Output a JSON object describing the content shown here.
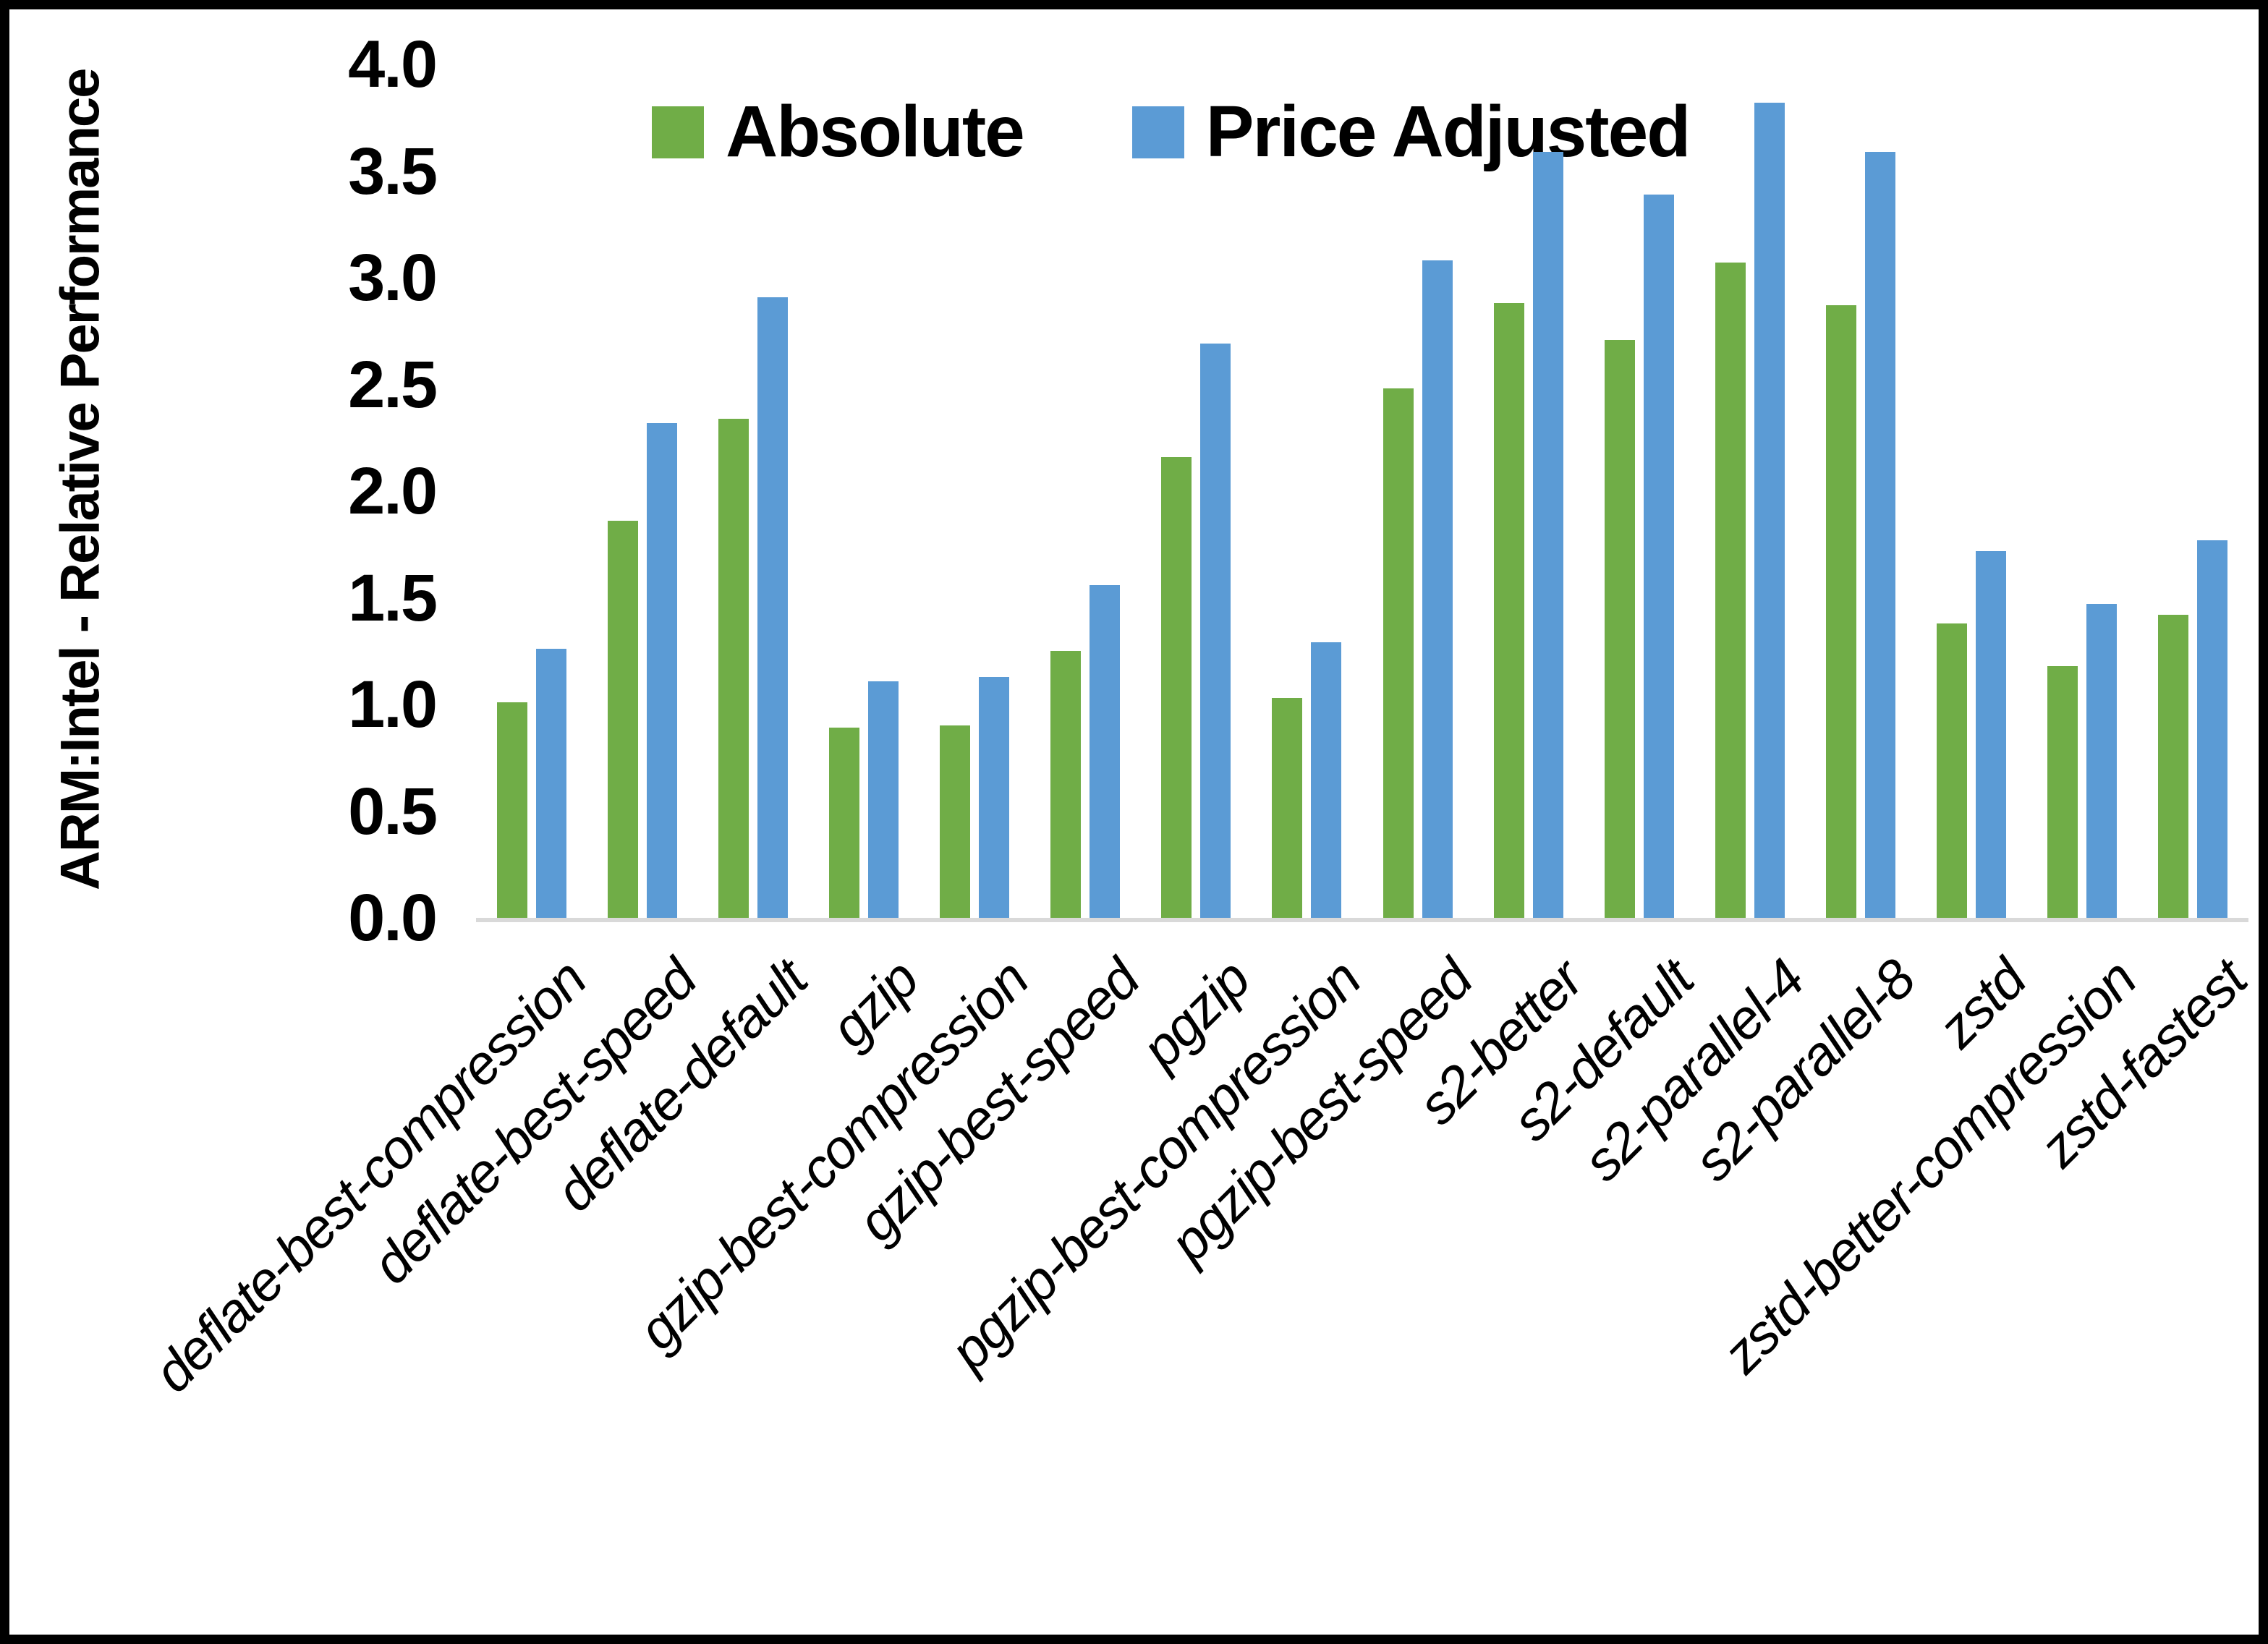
{
  "figure": {
    "background": "#ffffff",
    "border_color": "#000000",
    "axis_line_color": "#d9d9d9"
  },
  "legend": {
    "position": "top",
    "items": [
      {
        "label": "Absolute",
        "color": "#70AD47"
      },
      {
        "label": "Price Adjusted",
        "color": "#5B9BD5"
      }
    ]
  },
  "y_axis": {
    "title": "ARM:Intel - Relative Performance",
    "min": 0.0,
    "max": 4.0,
    "step": 0.5,
    "tick_labels": [
      "0.0",
      "0.5",
      "1.0",
      "1.5",
      "2.0",
      "2.5",
      "3.0",
      "3.5",
      "4.0"
    ]
  },
  "chart_data": {
    "type": "bar",
    "title": "",
    "xlabel": "",
    "ylabel": "ARM:Intel - Relative Performance",
    "ylim": [
      0.0,
      4.0
    ],
    "grid": false,
    "legend_position": "top",
    "categories": [
      "deflate-best-compression",
      "deflate-best-speed",
      "deflate-default",
      "gzip",
      "gzip-best-compression",
      "gzip-best-speed",
      "pgzip",
      "pgzip-best-compression",
      "pgzip-best-speed",
      "s2-better",
      "s2-default",
      "s2-parallel-4",
      "s2-parallel-8",
      "zstd",
      "zstd-better-compression",
      "zstd-fastest"
    ],
    "series": [
      {
        "name": "Absolute",
        "color": "#70AD47",
        "values": [
          1.01,
          1.86,
          2.34,
          0.89,
          0.9,
          1.25,
          2.16,
          1.03,
          2.48,
          2.88,
          2.71,
          3.07,
          2.87,
          1.38,
          1.18,
          1.42
        ]
      },
      {
        "name": "Price Adjusted",
        "color": "#5B9BD5",
        "values": [
          1.26,
          2.32,
          2.91,
          1.11,
          1.13,
          1.56,
          2.69,
          1.29,
          3.08,
          3.59,
          3.39,
          3.82,
          3.59,
          1.72,
          1.47,
          1.77
        ]
      }
    ]
  }
}
